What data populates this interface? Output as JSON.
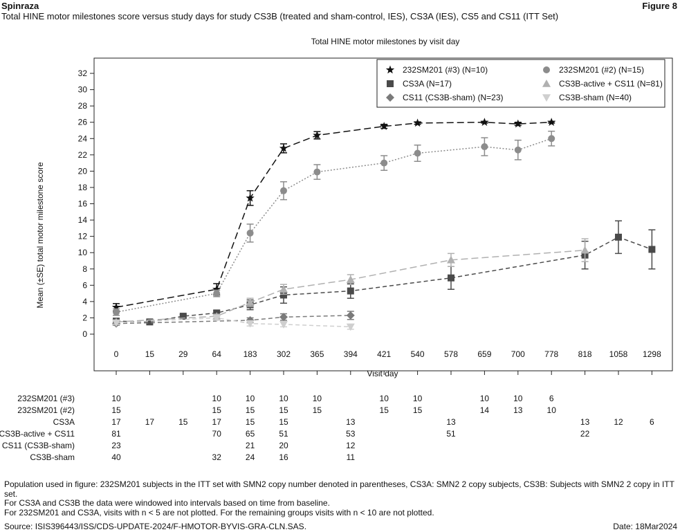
{
  "header": {
    "product": "Spinraza",
    "figure_label": "Figure 8",
    "subtitle": "Total HINE motor milestones score versus study days for study CS3B (treated and sham-control, IES), CS3A (IES), CS5 and CS11 (ITT Set)"
  },
  "chart_data": {
    "type": "line",
    "title": "Total HINE motor milestones by visit day",
    "xlabel": "Visit day",
    "ylabel": "Mean (±SE) total motor milestone score",
    "ylim": [
      0,
      33
    ],
    "yticks": [
      "0",
      "2",
      "4",
      "6",
      "8",
      "10",
      "12",
      "14",
      "16",
      "18",
      "20",
      "22",
      "24",
      "26",
      "28",
      "30",
      "32"
    ],
    "categories": [
      "0",
      "15",
      "29",
      "64",
      "183",
      "302",
      "365",
      "394",
      "421",
      "540",
      "578",
      "659",
      "700",
      "778",
      "818",
      "1058",
      "1298"
    ],
    "legend_position": "top-right",
    "series": [
      {
        "name": "232SM201 (#3) (N=10)",
        "marker": "star",
        "color": "#111111",
        "line": "dash-long",
        "points": [
          {
            "x": "0",
            "y": 3.3,
            "se": 0.45
          },
          {
            "x": "64",
            "y": 5.5,
            "se": 0.7
          },
          {
            "x": "183",
            "y": 16.7,
            "se": 0.9
          },
          {
            "x": "302",
            "y": 22.8,
            "se": 0.55
          },
          {
            "x": "365",
            "y": 24.4,
            "se": 0.45
          },
          {
            "x": "421",
            "y": 25.5,
            "se": 0.25
          },
          {
            "x": "540",
            "y": 25.9,
            "se": 0.15
          },
          {
            "x": "659",
            "y": 26.0,
            "se": 0.1
          },
          {
            "x": "700",
            "y": 25.8,
            "se": 0.2
          },
          {
            "x": "778",
            "y": 26.0,
            "se": 0.1
          }
        ]
      },
      {
        "name": "232SM201 (#2) (N=15)",
        "marker": "circle",
        "color": "#8c8c8c",
        "line": "dot",
        "points": [
          {
            "x": "0",
            "y": 2.7,
            "se": 0.4
          },
          {
            "x": "64",
            "y": 5.0,
            "se": 0.4
          },
          {
            "x": "183",
            "y": 12.4,
            "se": 1.1
          },
          {
            "x": "302",
            "y": 17.6,
            "se": 1.1
          },
          {
            "x": "365",
            "y": 19.9,
            "se": 0.9
          },
          {
            "x": "421",
            "y": 21.0,
            "se": 0.9
          },
          {
            "x": "540",
            "y": 22.2,
            "se": 1.0
          },
          {
            "x": "659",
            "y": 23.0,
            "se": 1.1
          },
          {
            "x": "700",
            "y": 22.6,
            "se": 1.2
          },
          {
            "x": "778",
            "y": 24.0,
            "se": 0.9
          }
        ]
      },
      {
        "name": "CS3A (N=17)",
        "marker": "square",
        "color": "#4a4a4a",
        "line": "dash",
        "points": [
          {
            "x": "0",
            "y": 1.6,
            "se": 0.3
          },
          {
            "x": "15",
            "y": 1.5,
            "se": 0.15
          },
          {
            "x": "29",
            "y": 2.2,
            "se": 0.2
          },
          {
            "x": "64",
            "y": 2.6,
            "se": 0.3
          },
          {
            "x": "183",
            "y": 3.6,
            "se": 0.6
          },
          {
            "x": "302",
            "y": 4.8,
            "se": 1.0
          },
          {
            "x": "394",
            "y": 5.3,
            "se": 0.9
          },
          {
            "x": "578",
            "y": 6.9,
            "se": 1.4
          },
          {
            "x": "818",
            "y": 9.7,
            "se": 1.7
          },
          {
            "x": "1058",
            "y": 11.9,
            "se": 2.0
          },
          {
            "x": "1298",
            "y": 10.4,
            "se": 2.4
          }
        ]
      },
      {
        "name": "CS3B-active + CS11 (N=81)",
        "marker": "triangle-up",
        "color": "#b0b0b0",
        "line": "dash-long",
        "points": [
          {
            "x": "0",
            "y": 1.5,
            "se": 0.15
          },
          {
            "x": "64",
            "y": 2.2,
            "se": 0.25
          },
          {
            "x": "183",
            "y": 3.9,
            "se": 0.5
          },
          {
            "x": "302",
            "y": 5.5,
            "se": 0.6
          },
          {
            "x": "394",
            "y": 6.7,
            "se": 0.6
          },
          {
            "x": "578",
            "y": 9.1,
            "se": 0.8
          },
          {
            "x": "818",
            "y": 10.3,
            "se": 1.4
          }
        ]
      },
      {
        "name": "CS11 (CS3B-sham) (N=23)",
        "marker": "diamond",
        "color": "#7a7a7a",
        "line": "dash",
        "points": [
          {
            "x": "0",
            "y": 1.3,
            "se": 0.2
          },
          {
            "x": "183",
            "y": 1.7,
            "se": 0.3
          },
          {
            "x": "302",
            "y": 2.1,
            "se": 0.4
          },
          {
            "x": "394",
            "y": 2.3,
            "se": 0.5
          }
        ]
      },
      {
        "name": "CS3B-sham (N=40)",
        "marker": "triangle-down",
        "color": "#cfcfcf",
        "line": "dash",
        "points": [
          {
            "x": "0",
            "y": 1.4,
            "se": 0.2
          },
          {
            "x": "64",
            "y": 2.0,
            "se": 0.3
          },
          {
            "x": "183",
            "y": 1.3,
            "se": 0.3
          },
          {
            "x": "302",
            "y": 1.2,
            "se": 0.3
          },
          {
            "x": "394",
            "y": 0.9,
            "se": 0.3
          }
        ]
      }
    ]
  },
  "counts_table": {
    "rows": [
      {
        "label": "232SM201 (#3)",
        "values": {
          "0": "10",
          "64": "10",
          "183": "10",
          "302": "10",
          "365": "10",
          "421": "10",
          "540": "10",
          "659": "10",
          "700": "10",
          "778": "6"
        }
      },
      {
        "label": "232SM201 (#2)",
        "values": {
          "0": "15",
          "64": "15",
          "183": "15",
          "302": "15",
          "365": "15",
          "421": "15",
          "540": "15",
          "659": "14",
          "700": "13",
          "778": "10"
        }
      },
      {
        "label": "CS3A",
        "values": {
          "0": "17",
          "15": "17",
          "29": "15",
          "64": "17",
          "183": "15",
          "302": "15",
          "394": "13",
          "578": "13",
          "818": "13",
          "1058": "12",
          "1298": "6"
        }
      },
      {
        "label": "CS3B-active + CS11",
        "values": {
          "0": "81",
          "64": "70",
          "183": "65",
          "302": "51",
          "394": "53",
          "578": "51",
          "818": "22"
        }
      },
      {
        "label": "CS11 (CS3B-sham)",
        "values": {
          "0": "23",
          "183": "21",
          "302": "20",
          "394": "12"
        }
      },
      {
        "label": "CS3B-sham",
        "values": {
          "0": "40",
          "64": "32",
          "183": "24",
          "302": "16",
          "394": "11"
        }
      }
    ]
  },
  "footnotes": [
    "Population used in figure: 232SM201 subjects in the ITT set with SMN2 copy number denoted in parentheses, CS3A: SMN2 2 copy subjects, CS3B: Subjects with SMN2 2 copy in ITT set.",
    "For CS3A and CS3B the data were windowed into intervals based on time from baseline.",
    "For 232SM201 and CS3A, visits with n < 5 are not plotted. For the remaining groups visits with n < 10 are not plotted."
  ],
  "source": "Source: ISIS396443/ISS/CDS-UPDATE-2024/F-HMOTOR-BYVIS-GRA-CLN.SAS.",
  "date": "Date: 18Mar2024"
}
